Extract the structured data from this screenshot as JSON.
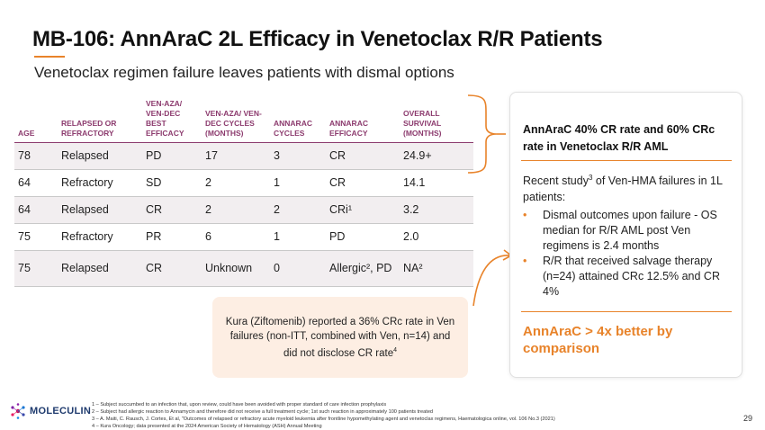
{
  "title": "MB-106: AnnAraC 2L Efficacy in Venetoclax R/R Patients",
  "subtitle": "Venetoclax regimen failure leaves patients with dismal options",
  "table": {
    "headers": [
      "AGE",
      "RELAPSED OR REFRACTORY",
      "VEN-AZA/ VEN-DEC BEST EFFICACY",
      "VEN-AZA/ VEN-DEC CYCLES (MONTHS)",
      "ANNARAC CYCLES",
      "ANNARAC EFFICACY",
      "OVERALL SURVIVAL (MONTHS)"
    ],
    "rows": [
      [
        "78",
        "Relapsed",
        "PD",
        "17",
        "3",
        "CR",
        "24.9+"
      ],
      [
        "64",
        "Refractory",
        "SD",
        "2",
        "1",
        "CR",
        "14.1"
      ],
      [
        "64",
        "Relapsed",
        "CR",
        "2",
        "2",
        "CRi¹",
        "3.2"
      ],
      [
        "75",
        "Refractory",
        "PR",
        "6",
        "1",
        "PD",
        "2.0"
      ],
      [
        "75",
        "Relapsed",
        "CR",
        "Unknown",
        "0",
        "Allergic², PD",
        "NA²"
      ]
    ]
  },
  "card": {
    "headline": "AnnAraC 40% CR rate and 60% CRc rate in Venetoclax R/R AML",
    "intro_pre": "Recent study",
    "intro_sup": "3",
    "intro_post": " of Ven-HMA failures in 1L patients:",
    "bullets": [
      "Dismal outcomes upon failure - OS median for R/R AML post Ven regimens is 2.4 months",
      "R/R that received salvage therapy (n=24) attained CRc 12.5% and CR 4%"
    ],
    "conclusion": "AnnAraC > 4x better by comparison"
  },
  "callout": {
    "text": "Kura (Ziftomenib) reported a 36% CRc rate in Ven failures (non-ITT, combined with Ven, n=14) and did not disclose CR rate",
    "sup": "4"
  },
  "footer": {
    "logo": "MOLECULIN",
    "footnotes": [
      "1 – Subject succumbed to an infection that, upon review, could have been avoided with proper standard of care infection prophylaxis",
      "2 – Subject had allergic reaction to Annamycin and therefore did not receive a full treatment cycle; 1st such reaction in approximately 100 patients treated",
      "3 – A. Maiti, C. Rausch, J. Cortes, Et al, \"Outcomes of relapsed or refractory acute myeloid leukemia after frontline hypomethylating agent and venetoclax regimens, Haematologica online, vol. 106 No.3 (2021)",
      "4 – Kura Oncology; data presented at the 2024 American Society of Hematology (ASH) Annual Meeting"
    ],
    "page": "29"
  },
  "colors": {
    "accent": "#e8832a",
    "header": "#8c3b6e",
    "callout_bg": "#fdeee3"
  }
}
